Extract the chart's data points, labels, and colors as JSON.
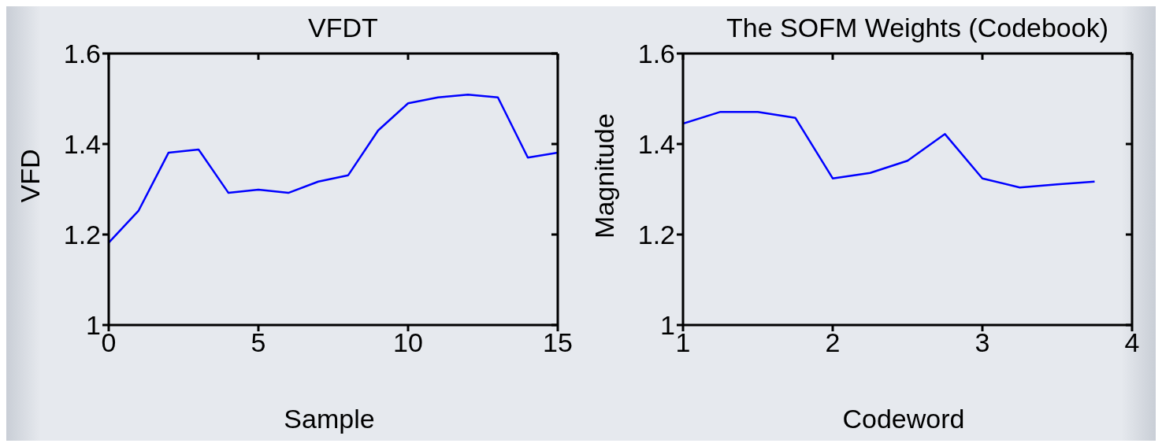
{
  "chart_data": [
    {
      "type": "line",
      "title": "VFDT",
      "xlabel": "Sample",
      "ylabel": "VFD",
      "x": [
        0,
        1,
        2,
        3,
        4,
        5,
        6,
        7,
        8,
        9,
        10,
        11,
        12,
        13,
        14,
        15
      ],
      "series": [
        {
          "color": "#0000ff",
          "values": [
            1.182,
            1.253,
            1.381,
            1.388,
            1.292,
            1.299,
            1.292,
            1.317,
            1.331,
            1.43,
            1.49,
            1.503,
            1.509,
            1.503,
            1.37,
            1.381
          ]
        }
      ],
      "xlim": [
        0,
        15
      ],
      "xticks": [
        0,
        5,
        10,
        15
      ],
      "ylim": [
        1,
        1.6
      ],
      "yticks": [
        1,
        1.2,
        1.4,
        1.6
      ],
      "grid": false,
      "legend": false
    },
    {
      "type": "line",
      "title": "The SOFM Weights (Codebook)",
      "xlabel": "Codeword",
      "ylabel": "Magnitude",
      "x": [
        1,
        1.25,
        1.5,
        1.75,
        2,
        2.25,
        2.5,
        2.75,
        3,
        3.25,
        3.5,
        3.75
      ],
      "series": [
        {
          "color": "#0000ff",
          "values": [
            1.445,
            1.471,
            1.471,
            1.458,
            1.324,
            1.336,
            1.363,
            1.422,
            1.324,
            1.304,
            1.311,
            1.317
          ]
        }
      ],
      "xlim": [
        1,
        4
      ],
      "xticks": [
        1,
        2,
        3,
        4
      ],
      "ylim": [
        1,
        1.6
      ],
      "yticks": [
        1,
        1.2,
        1.4,
        1.6
      ],
      "grid": false,
      "legend": false
    }
  ]
}
